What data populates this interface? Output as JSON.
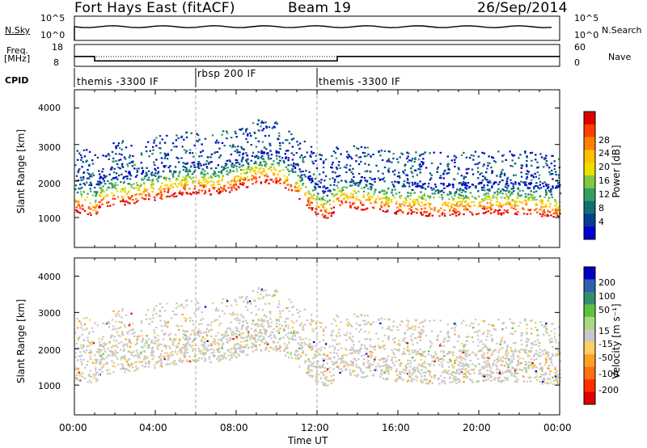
{
  "header": {
    "radar": "Fort Hays East (fitACF)",
    "beam": "Beam 19",
    "date": "26/Sep/2014"
  },
  "summary": {
    "nsky_label": "N.Sky",
    "nsearch_label": "N.Search",
    "freq_label": "Freq.",
    "freq_unit": "[MHz]",
    "nave_label": "Nave",
    "cpid_label": "CPID",
    "noise_ticks": [
      "10^5",
      "10^0"
    ],
    "noise_right_ticks": [
      "10^5",
      "10^0"
    ],
    "freq_ticks": [
      "18",
      "8"
    ],
    "nave_ticks": [
      "60",
      "0"
    ],
    "cpid_segments": [
      {
        "label": "themis -3300 IF",
        "start_h": 0.0,
        "end_h": 6.0
      },
      {
        "label": "rbsp 200 IF",
        "start_h": 6.0,
        "end_h": 12.0
      },
      {
        "label": "themis -3300 IF",
        "start_h": 12.0,
        "end_h": 24.0
      }
    ],
    "freq_steps": [
      {
        "start_h": 0.0,
        "end_h": 1.0,
        "mhz": 12.5
      },
      {
        "start_h": 1.0,
        "end_h": 13.0,
        "mhz": 10.5
      },
      {
        "start_h": 13.0,
        "end_h": 24.0,
        "mhz": 12.5
      }
    ]
  },
  "chart_data": [
    {
      "type": "heatmap",
      "name": "power",
      "ylabel": "Slant Range [km]",
      "xlabel": "",
      "xlim_h": [
        0,
        24
      ],
      "ylim_km": [
        180,
        4500
      ],
      "yticks": [
        "1000",
        "2000",
        "3000",
        "4000"
      ],
      "colorbar_label": "Power [dB]",
      "colorbar_ticks": [
        "28",
        "24",
        "20",
        "16",
        "12",
        "8",
        "4"
      ],
      "colorbar_colors": [
        "#e00000",
        "#ff4000",
        "#ff8000",
        "#ffc000",
        "#e8e000",
        "#80c840",
        "#30a060",
        "#107070",
        "#004090",
        "#0000d0"
      ],
      "echo_band_center_km": [
        [
          0.0,
          1500
        ],
        [
          0.5,
          1500
        ],
        [
          1.0,
          1350
        ],
        [
          1.2,
          1600
        ],
        [
          2.0,
          1700
        ],
        [
          3.0,
          1750
        ],
        [
          4.0,
          1850
        ],
        [
          5.0,
          1950
        ],
        [
          6.0,
          2000
        ],
        [
          7.0,
          2000
        ],
        [
          8.0,
          2100
        ],
        [
          9.0,
          2300
        ],
        [
          10.0,
          2300
        ],
        [
          11.0,
          1900
        ],
        [
          12.0,
          1400
        ],
        [
          12.5,
          1300
        ],
        [
          13.0,
          1650
        ],
        [
          14.0,
          1600
        ],
        [
          16.0,
          1450
        ],
        [
          18.0,
          1400
        ],
        [
          20.0,
          1450
        ],
        [
          22.0,
          1450
        ],
        [
          24.0,
          1350
        ]
      ]
    },
    {
      "type": "heatmap",
      "name": "velocity",
      "ylabel": "Slant Range [km]",
      "xlabel": "Time UT",
      "xlim_h": [
        0,
        24
      ],
      "ylim_km": [
        180,
        4500
      ],
      "yticks": [
        "1000",
        "2000",
        "3000",
        "4000"
      ],
      "xticks": [
        "00:00",
        "04:00",
        "08:00",
        "12:00",
        "16:00",
        "20:00",
        "00:00"
      ],
      "colorbar_label": "Velocity [m s⁻¹]",
      "colorbar_ticks": [
        "200",
        "100",
        "50",
        "15",
        "-15",
        "-50",
        "-100",
        "-200"
      ],
      "colorbar_colors": [
        "#0000c0",
        "#3060b0",
        "#2f8f6f",
        "#60c040",
        "#a8d880",
        "#c8c8c8",
        "#ffd060",
        "#ffa020",
        "#ff7010",
        "#ff3000",
        "#e00000"
      ]
    }
  ]
}
